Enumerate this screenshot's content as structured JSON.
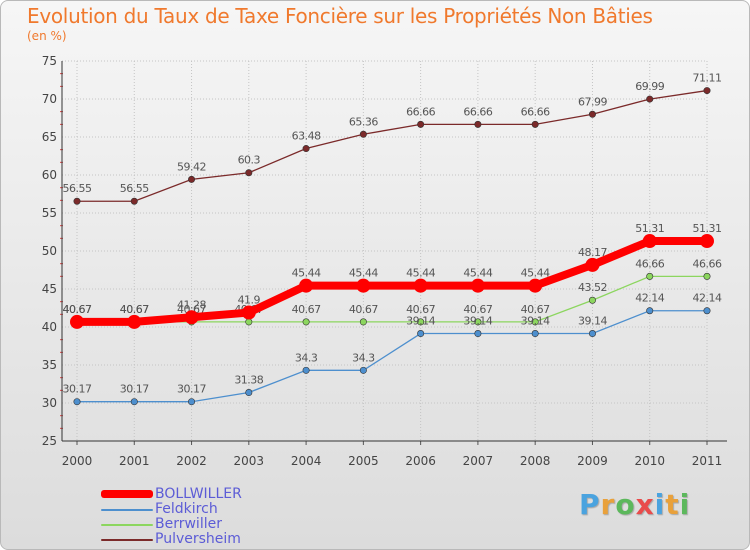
{
  "title": "Evolution du Taux de Taxe Foncière sur les Propriétés Non Bâties",
  "unit_label": "(en %)",
  "brand": {
    "letters": [
      "P",
      "r",
      "o",
      "x",
      "i",
      "t",
      "i"
    ],
    "colors": [
      "#4aa3df",
      "#e9a13b",
      "#5cb85c",
      "#e94b4b",
      "#4aa3df",
      "#e9a13b",
      "#5cb85c"
    ]
  },
  "chart_data": {
    "type": "line",
    "title": "Evolution du Taux de Taxe Foncière sur les Propriétés Non Bâties",
    "ylabel": "(en %)",
    "xlabel": "",
    "x": [
      "2000",
      "2001",
      "2002",
      "2003",
      "2004",
      "2005",
      "2006",
      "2007",
      "2008",
      "2009",
      "2010",
      "2011"
    ],
    "ylim": [
      25,
      75
    ],
    "yticks": [
      25,
      30,
      35,
      40,
      45,
      50,
      55,
      60,
      65,
      70,
      75
    ],
    "grid": true,
    "legend": "bottom-left",
    "series": [
      {
        "name": "BOLLWILLER",
        "color": "#ff0000",
        "emphasis": true,
        "values": [
          40.67,
          40.67,
          41.28,
          41.9,
          45.44,
          45.44,
          45.44,
          45.44,
          45.44,
          48.17,
          51.31,
          51.31
        ],
        "labels": [
          "40.67",
          "40.67",
          "41.28",
          "41.9",
          "45.44",
          "45.44",
          "45.44",
          "45.44",
          "45.44",
          "48.17",
          "51.31",
          "51.31"
        ]
      },
      {
        "name": "Feldkirch",
        "color": "#4d8fce",
        "values": [
          30.17,
          30.17,
          30.17,
          31.38,
          34.3,
          34.3,
          39.14,
          39.14,
          39.14,
          39.14,
          42.14,
          42.14
        ],
        "labels": [
          "30.17",
          "30.17",
          "30.17",
          "31.38",
          "34.3",
          "34.3",
          "39.14",
          "39.14",
          "39.14",
          "39.14",
          "42.14",
          "42.14"
        ]
      },
      {
        "name": "Berrwiller",
        "color": "#8cd65f",
        "values": [
          40.67,
          40.67,
          40.67,
          40.67,
          40.67,
          40.67,
          40.67,
          40.67,
          40.67,
          43.52,
          46.66,
          46.66
        ],
        "labels": [
          "40.67",
          "40.67",
          "40.67",
          "40.67",
          "40.67",
          "40.67",
          "40.67",
          "40.67",
          "40.67",
          "43.52",
          "46.66",
          "46.66"
        ]
      },
      {
        "name": "Pulversheim",
        "color": "#7b2a2a",
        "values": [
          56.55,
          56.55,
          59.42,
          60.3,
          63.48,
          65.36,
          66.66,
          66.66,
          66.66,
          67.99,
          69.99,
          71.11
        ],
        "labels": [
          "56.55",
          "56.55",
          "59.42",
          "60.3",
          "63.48",
          "65.36",
          "66.66",
          "66.66",
          "66.66",
          "67.99",
          "69.99",
          "71.11"
        ]
      }
    ]
  }
}
